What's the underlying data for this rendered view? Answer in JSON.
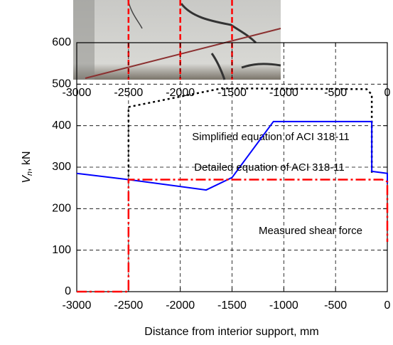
{
  "chart_data": {
    "type": "line",
    "xlabel": "Distance from interior support, mm",
    "ylabel": {
      "symbol": "V",
      "subscript": "n",
      "unit": ", kN"
    },
    "xlim": [
      -3000,
      0
    ],
    "ylim": [
      0,
      600
    ],
    "xticks": [
      -3000,
      -2500,
      -2000,
      -1500,
      -1000,
      -500,
      0
    ],
    "yticks": [
      0,
      100,
      200,
      300,
      400,
      500,
      600
    ],
    "top_xticks": [
      -3000,
      -2500,
      -2000,
      -1500,
      -1000,
      -500,
      0
    ],
    "photo_markers_x": [
      -2500,
      -2000,
      -1500
    ],
    "grid": true,
    "series": [
      {
        "name": "Simplified equation of ACI 318-11",
        "color": "#000000",
        "style": "dotted",
        "x": [
          -2500,
          -2500,
          -2200,
          -1600,
          -200,
          -150,
          -150
        ],
        "values": [
          265,
          445,
          460,
          490,
          488,
          475,
          285
        ]
      },
      {
        "name": "Detailed equation of ACI 318-11",
        "color": "#0000ff",
        "style": "solid",
        "x": [
          -3000,
          -2500,
          -1750,
          -1500,
          -1100,
          -150,
          -150,
          0,
          0
        ],
        "values": [
          285,
          270,
          245,
          275,
          410,
          410,
          290,
          285,
          260
        ]
      },
      {
        "name": "Measured shear force",
        "color": "#ff0000",
        "style": "dashdot",
        "x": [
          -3000,
          -2500,
          -2500,
          -50,
          0,
          0
        ],
        "values": [
          0,
          0,
          270,
          270,
          265,
          120
        ]
      }
    ]
  }
}
